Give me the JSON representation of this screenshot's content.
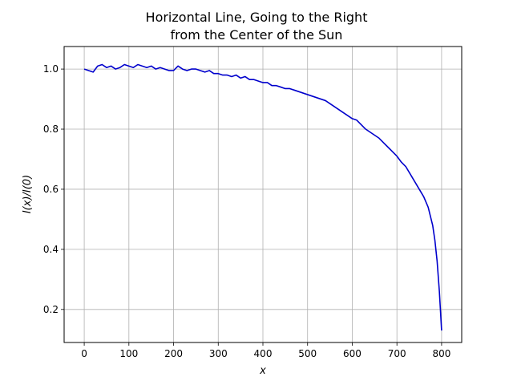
{
  "chart_data": {
    "type": "line",
    "title_line1": "Horizontal Line, Going to the Right",
    "title_line2": "from the Center of the Sun",
    "xlabel": "x",
    "ylabel": "I(x)/I(0)",
    "xlim": [
      -45,
      845
    ],
    "ylim": [
      0.09,
      1.075
    ],
    "xticks": [
      0,
      100,
      200,
      300,
      400,
      500,
      600,
      700,
      800
    ],
    "yticks": [
      0.2,
      0.4,
      0.6,
      0.8,
      1.0
    ],
    "ytick_labels": [
      "0.2",
      "0.4",
      "0.6",
      "0.8",
      "1.0"
    ],
    "grid": true,
    "series": [
      {
        "color": "#0000cc",
        "x": [
          0,
          10,
          20,
          30,
          40,
          50,
          60,
          70,
          80,
          90,
          100,
          110,
          120,
          130,
          140,
          150,
          160,
          170,
          180,
          190,
          200,
          210,
          220,
          230,
          240,
          250,
          260,
          270,
          280,
          290,
          300,
          310,
          320,
          330,
          340,
          350,
          360,
          370,
          380,
          390,
          400,
          410,
          420,
          430,
          440,
          450,
          460,
          470,
          480,
          490,
          500,
          510,
          520,
          530,
          540,
          550,
          560,
          570,
          580,
          590,
          600,
          610,
          620,
          630,
          640,
          650,
          660,
          670,
          680,
          690,
          700,
          710,
          720,
          730,
          740,
          750,
          760,
          770,
          780,
          785,
          790,
          795,
          800
        ],
        "y": [
          1.0,
          0.995,
          0.99,
          1.01,
          1.015,
          1.005,
          1.01,
          1.0,
          1.005,
          1.015,
          1.01,
          1.005,
          1.015,
          1.01,
          1.005,
          1.01,
          1.0,
          1.005,
          1.0,
          0.995,
          0.995,
          1.01,
          1.0,
          0.995,
          1.0,
          1.0,
          0.995,
          0.99,
          0.995,
          0.985,
          0.985,
          0.98,
          0.98,
          0.975,
          0.98,
          0.97,
          0.975,
          0.965,
          0.965,
          0.96,
          0.955,
          0.955,
          0.945,
          0.945,
          0.94,
          0.935,
          0.935,
          0.93,
          0.925,
          0.92,
          0.915,
          0.91,
          0.905,
          0.9,
          0.895,
          0.885,
          0.875,
          0.865,
          0.855,
          0.845,
          0.835,
          0.83,
          0.815,
          0.8,
          0.79,
          0.78,
          0.77,
          0.755,
          0.74,
          0.725,
          0.71,
          0.69,
          0.675,
          0.65,
          0.625,
          0.6,
          0.575,
          0.54,
          0.48,
          0.43,
          0.36,
          0.26,
          0.13
        ]
      }
    ]
  }
}
